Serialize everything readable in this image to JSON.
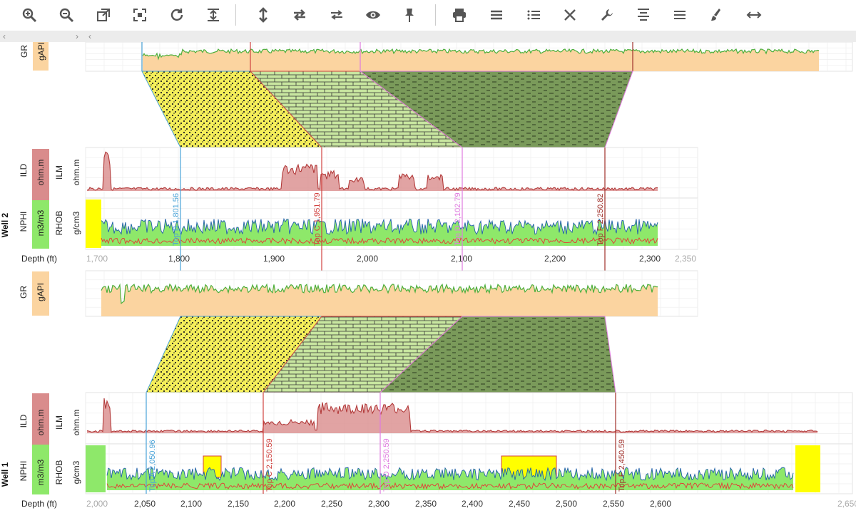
{
  "toolbar": {
    "buttons": [
      {
        "name": "zoom-in-icon"
      },
      {
        "name": "zoom-out-icon"
      },
      {
        "name": "open-external-icon"
      },
      {
        "name": "fit-screen-icon"
      },
      {
        "name": "refresh-icon"
      },
      {
        "name": "fit-height-icon"
      },
      {
        "name": "vertical-arrows-icon"
      },
      {
        "name": "swap-horizontal-icon"
      },
      {
        "name": "swap-arrows-icon"
      },
      {
        "name": "eye-icon"
      },
      {
        "name": "pin-icon"
      },
      {
        "name": "print-icon"
      },
      {
        "name": "menu-lines-icon"
      },
      {
        "name": "list-icon"
      },
      {
        "name": "close-icon"
      },
      {
        "name": "wrench-icon"
      },
      {
        "name": "align-center-icon"
      },
      {
        "name": "lines-icon"
      },
      {
        "name": "brush-icon"
      },
      {
        "name": "horizontal-arrows-icon"
      }
    ]
  },
  "scroll": {
    "left_arrow": "‹",
    "right_arrow": "›",
    "left_arrow2": "‹"
  },
  "well_top_partial": {
    "labels": [
      "GR",
      "gAPI"
    ]
  },
  "well2": {
    "name": "Well 2",
    "tracks": [
      {
        "curve": "ILD",
        "unit": "ohm.m",
        "curve2": "ILM",
        "unit2": "ohm.m"
      },
      {
        "curve": "NPHI",
        "unit": "m3/m3",
        "curve2": "RHOB",
        "unit2": "g/cm3"
      }
    ],
    "depth_label": "Depth (ft)",
    "depth_ticks": [
      "1,700",
      "1,800",
      "1,900",
      "2,000",
      "2,100",
      "2,200",
      "2,300",
      "2,350"
    ],
    "tops": [
      {
        "name": "Top B",
        "depth": "1,801.56",
        "color": "#4aa3d8"
      },
      {
        "name": "Top C",
        "depth": "1,951.79",
        "color": "#d0423f"
      },
      {
        "name": "Top D",
        "depth": "2,102.79",
        "color": "#e07be0"
      },
      {
        "name": "Top F",
        "depth": "2,250.82",
        "color": "#a0302a"
      }
    ],
    "gr": {
      "curve": "GR",
      "unit": "gAPI"
    }
  },
  "well1": {
    "name": "Well 1",
    "tracks": [
      {
        "curve": "ILD",
        "unit": "ohm.m",
        "curve2": "ILM",
        "unit2": "ohm.m"
      },
      {
        "curve": "NPHI",
        "unit": "m3/m3",
        "curve2": "RHOB",
        "unit2": "g/cm3"
      }
    ],
    "depth_label": "Depth (ft)",
    "depth_ticks": [
      "2,000",
      "2,050",
      "2,100",
      "2,150",
      "2,200",
      "2,250",
      "2,300",
      "2,350",
      "2,400",
      "2,450",
      "2,500",
      "2,550",
      "2,600",
      "2,650"
    ],
    "tops": [
      {
        "name": "Top A",
        "depth": "2,050.96",
        "color": "#4aa3d8"
      },
      {
        "name": "Top C",
        "depth": "2,150.59",
        "color": "#d0423f"
      },
      {
        "name": "Top D",
        "depth": "2,250.59",
        "color": "#e07be0"
      },
      {
        "name": "Top F",
        "depth": "2,450.59",
        "color": "#a0302a"
      }
    ]
  },
  "colors": {
    "gr_fill": "#fbd4a0",
    "gr_line": "#4caf3c",
    "ild_fill": "#d98c8c",
    "ild_line": "#b23a3a",
    "nphi_fill": "#8ee86a",
    "rhob_line": "#1f5fa8",
    "sand": "#f5ef5a",
    "lime": "#c8e6a0",
    "shale": "#7a9a5a",
    "highlight": "#ffff00"
  }
}
